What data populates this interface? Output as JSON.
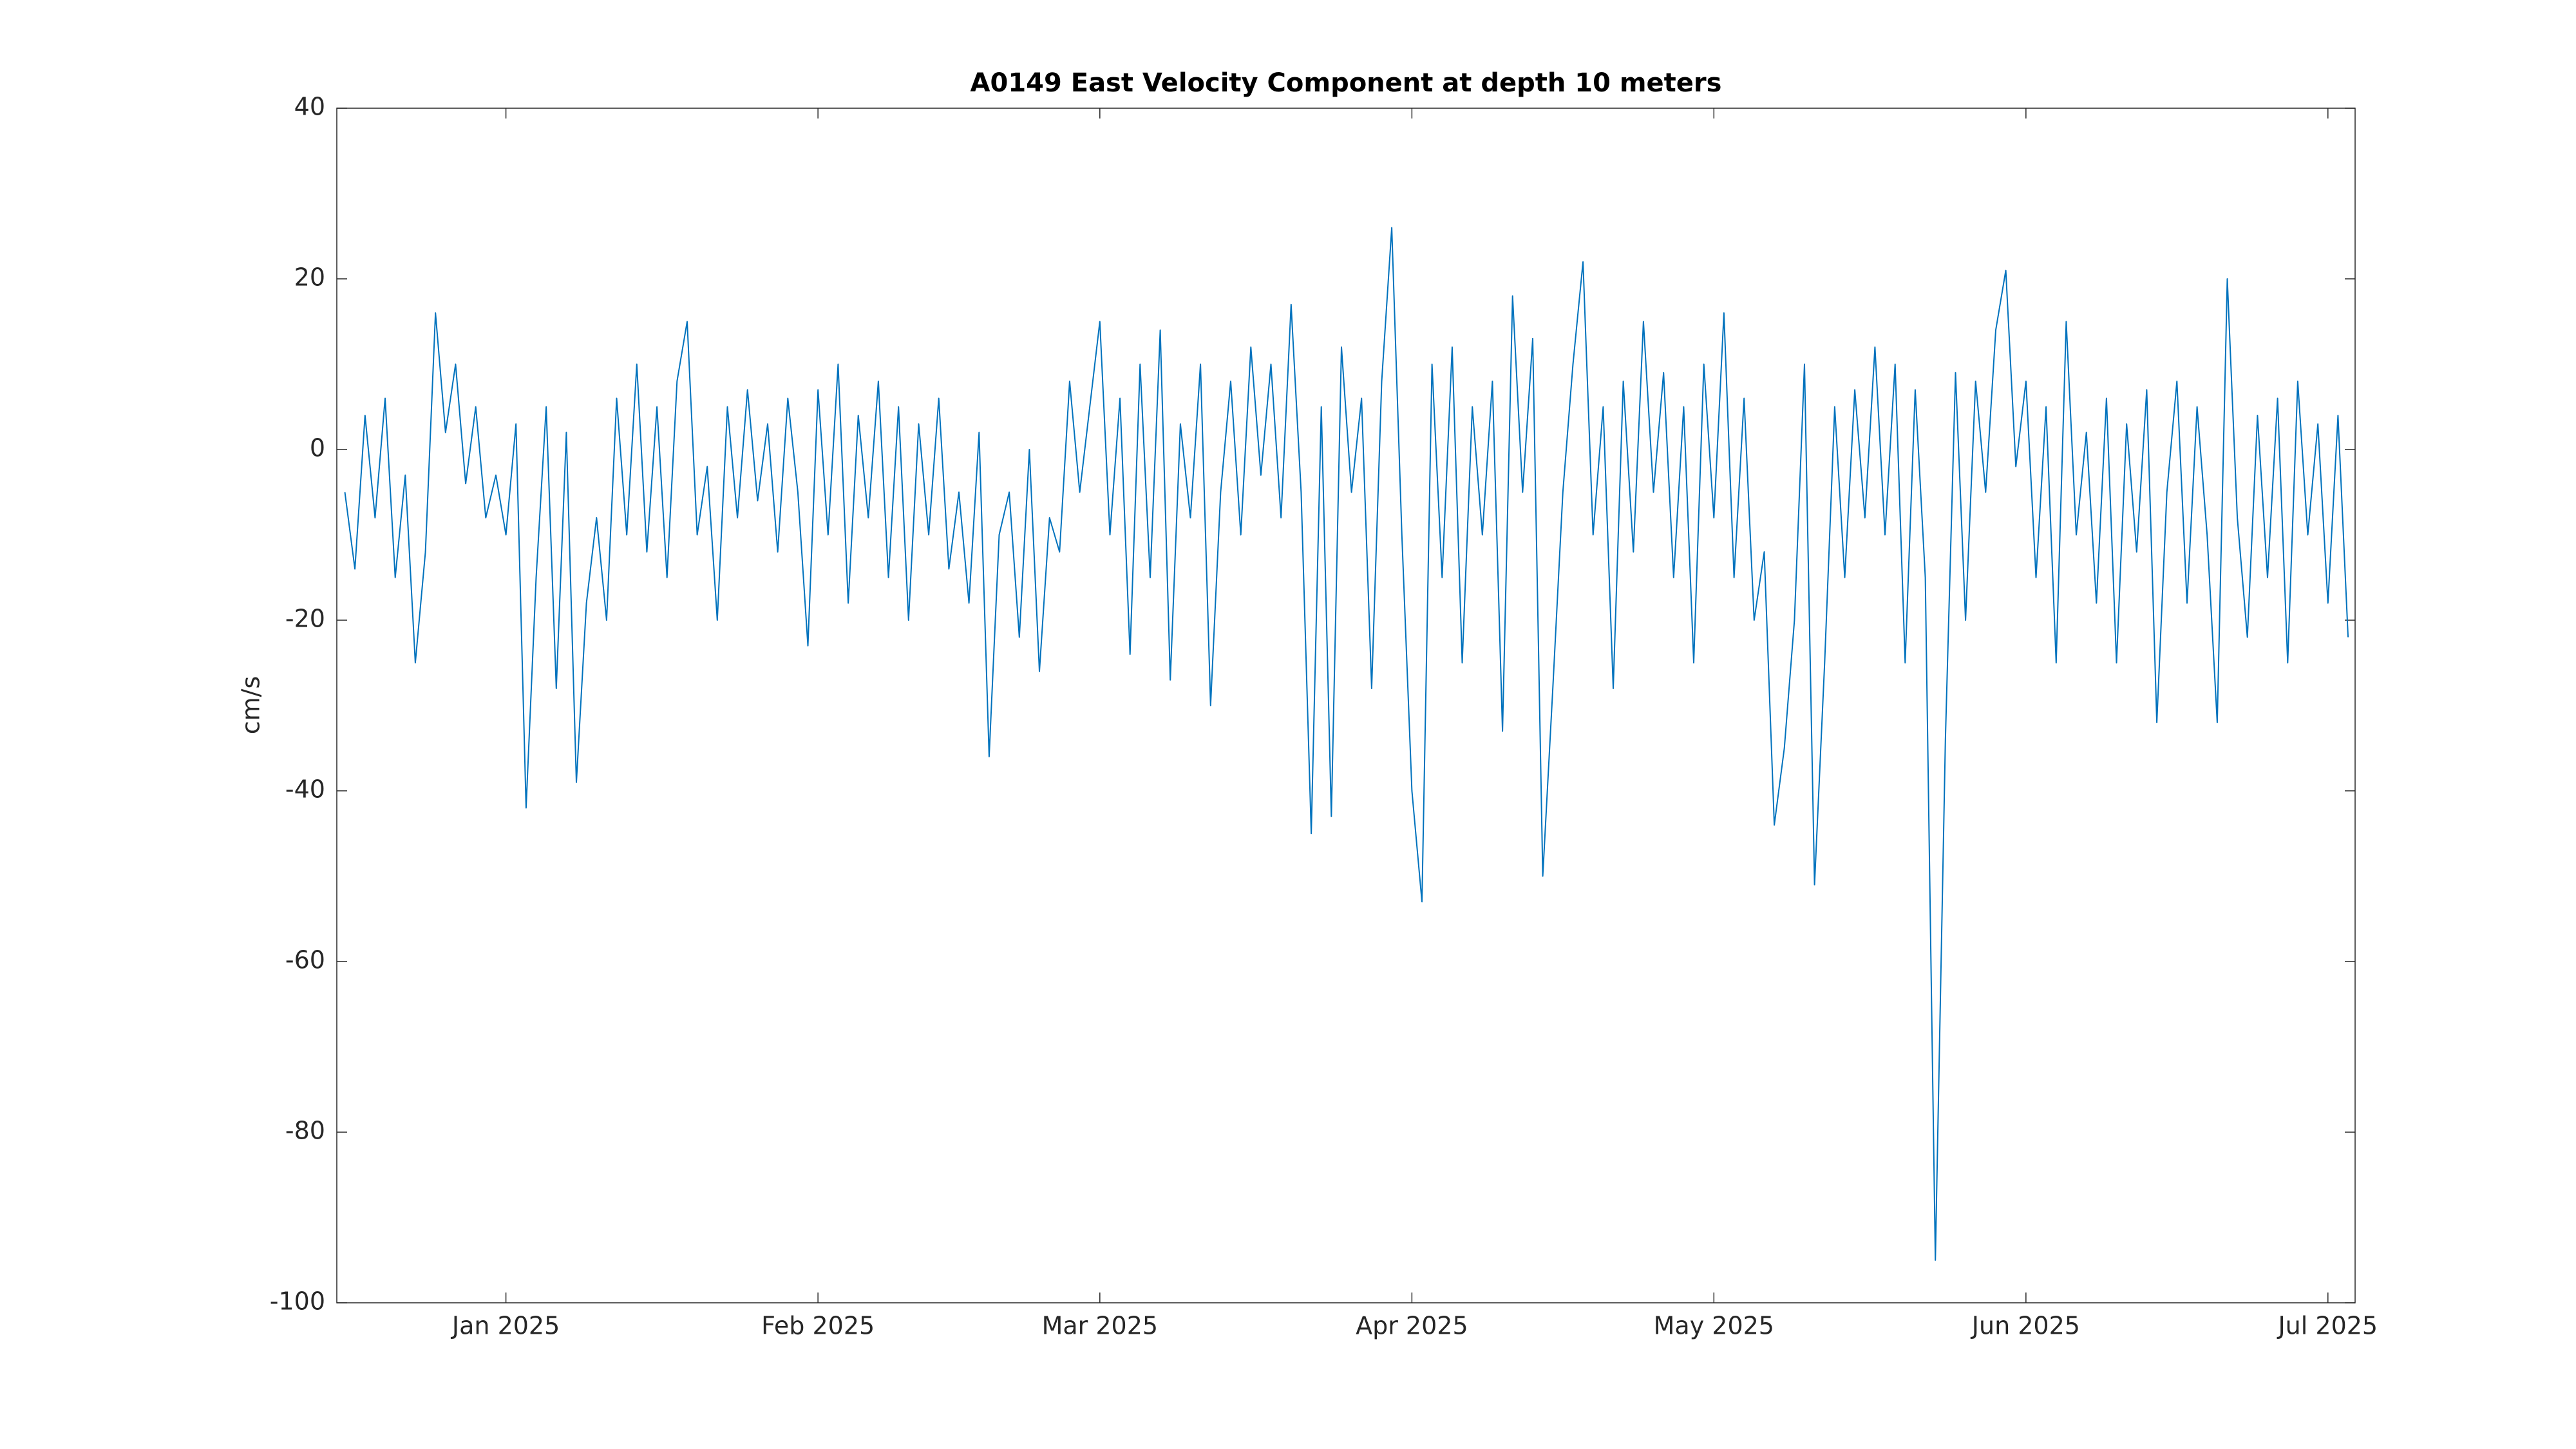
{
  "chart_data": {
    "type": "line",
    "title": "A0149 East Velocity Component at depth 10 meters",
    "y_label": "cm/s",
    "color": "#0072bd",
    "xlim": [
      -16.8,
      183.7
    ],
    "ylim": [
      -100,
      40
    ],
    "xticks": [
      {
        "value": 0,
        "label": "Jan 2025"
      },
      {
        "value": 31,
        "label": "Feb 2025"
      },
      {
        "value": 59,
        "label": "Mar 2025"
      },
      {
        "value": 90,
        "label": "Apr 2025"
      },
      {
        "value": 120,
        "label": "May 2025"
      },
      {
        "value": 151,
        "label": "Jun 2025"
      },
      {
        "value": 181,
        "label": "Jul 2025"
      }
    ],
    "yticks": [
      -100,
      -80,
      -60,
      -40,
      -20,
      0,
      20,
      40
    ],
    "grid": false,
    "x": [
      -16,
      -15,
      -14,
      -13,
      -12,
      -11,
      -10,
      -9,
      -8,
      -7,
      -6,
      -5,
      -4,
      -3,
      -2,
      -1,
      0,
      1,
      2,
      3,
      4,
      5,
      6,
      7,
      8,
      9,
      10,
      11,
      12,
      13,
      14,
      15,
      16,
      17,
      18,
      19,
      20,
      21,
      22,
      23,
      24,
      25,
      26,
      27,
      28,
      29,
      30,
      31,
      32,
      33,
      34,
      35,
      36,
      37,
      38,
      39,
      40,
      41,
      42,
      43,
      44,
      45,
      46,
      47,
      48,
      49,
      50,
      51,
      52,
      53,
      54,
      55,
      56,
      57,
      58,
      59,
      60,
      61,
      62,
      63,
      64,
      65,
      66,
      67,
      68,
      69,
      70,
      71,
      72,
      73,
      74,
      75,
      76,
      77,
      78,
      79,
      80,
      81,
      82,
      83,
      84,
      85,
      86,
      87,
      88,
      89,
      90,
      91,
      92,
      93,
      94,
      95,
      96,
      97,
      98,
      99,
      100,
      101,
      102,
      103,
      104,
      105,
      106,
      107,
      108,
      109,
      110,
      111,
      112,
      113,
      114,
      115,
      116,
      117,
      118,
      119,
      120,
      121,
      122,
      123,
      124,
      125,
      126,
      127,
      128,
      129,
      130,
      131,
      132,
      133,
      134,
      135,
      136,
      137,
      138,
      139,
      140,
      141,
      142,
      143,
      144,
      145,
      146,
      147,
      148,
      149,
      150,
      151,
      152,
      153,
      154,
      155,
      156,
      157,
      158,
      159,
      160,
      161,
      162,
      163,
      164,
      165,
      166,
      167,
      168,
      169,
      170,
      171,
      172,
      173,
      174,
      175,
      176,
      177,
      178,
      179,
      180,
      181,
      182,
      183
    ],
    "values": [
      -5,
      -14,
      4,
      -8,
      6,
      -15,
      -3,
      -25,
      -12,
      16,
      2,
      10,
      -4,
      5,
      -8,
      -3,
      -10,
      3,
      -42,
      -15,
      5,
      -28,
      2,
      -39,
      -18,
      -8,
      -20,
      6,
      -10,
      10,
      -12,
      5,
      -15,
      8,
      15,
      -10,
      -2,
      -20,
      5,
      -8,
      7,
      -6,
      3,
      -12,
      6,
      -5,
      -23,
      7,
      -10,
      10,
      -18,
      4,
      -8,
      8,
      -15,
      5,
      -20,
      3,
      -10,
      6,
      -14,
      -5,
      -18,
      2,
      -36,
      -10,
      -5,
      -22,
      0,
      -26,
      -8,
      -12,
      8,
      -5,
      5,
      15,
      -10,
      6,
      -24,
      10,
      -15,
      14,
      -27,
      3,
      -8,
      10,
      -30,
      -5,
      8,
      -10,
      12,
      -3,
      10,
      -8,
      17,
      -5,
      -45,
      5,
      -43,
      12,
      -5,
      6,
      -28,
      8,
      26,
      -10,
      -40,
      -53,
      10,
      -15,
      12,
      -25,
      5,
      -10,
      8,
      -33,
      18,
      -5,
      13,
      -50,
      -28,
      -5,
      10,
      22,
      -10,
      5,
      -28,
      8,
      -12,
      15,
      -5,
      9,
      -15,
      5,
      -25,
      10,
      -8,
      16,
      -15,
      6,
      -20,
      -12,
      -44,
      -35,
      -20,
      10,
      -51,
      -25,
      5,
      -15,
      7,
      -8,
      12,
      -10,
      10,
      -25,
      7,
      -15,
      -95,
      -34,
      9,
      -20,
      8,
      -5,
      14,
      21,
      -2,
      8,
      -15,
      5,
      -25,
      15,
      -10,
      2,
      -18,
      6,
      -25,
      3,
      -12,
      7,
      -32,
      -5,
      8,
      -18,
      5,
      -10,
      -32,
      20,
      -8,
      -22,
      4,
      -15,
      6,
      -25,
      8,
      -10,
      3,
      -18,
      4,
      -22
    ]
  }
}
